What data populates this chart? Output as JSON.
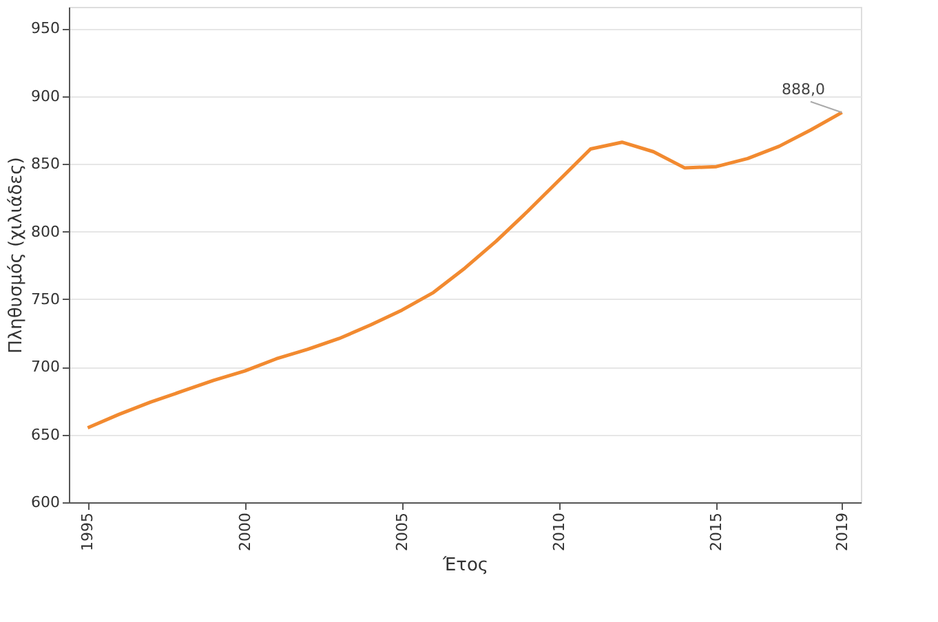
{
  "chart_data": {
    "type": "line",
    "xlabel": "Έτος",
    "ylabel": "Πληθυσμός (χιλιάδες)",
    "x": [
      1995,
      1996,
      1997,
      1998,
      1999,
      2000,
      2001,
      2002,
      2003,
      2004,
      2005,
      2006,
      2007,
      2008,
      2009,
      2010,
      2011,
      2012,
      2013,
      2014,
      2015,
      2016,
      2017,
      2018,
      2019
    ],
    "series": [
      {
        "color": "#f28a30",
        "values": [
          655,
          665,
          674,
          682,
          690,
          697,
          706,
          713,
          721,
          731,
          742,
          755,
          773,
          793,
          815,
          838,
          861,
          866,
          859,
          847,
          848,
          854,
          863,
          875,
          888
        ]
      }
    ],
    "xlim": [
      1994.4,
      2019.6
    ],
    "xticks": [
      1995,
      2000,
      2005,
      2010,
      2015,
      2019
    ],
    "ylim": [
      600,
      966
    ],
    "yticks": [
      600,
      650,
      700,
      750,
      800,
      850,
      900,
      950
    ],
    "grid": "y",
    "marker": "none",
    "line_style": "solid",
    "annotations": [
      {
        "text": "888,0",
        "x": 2019,
        "y": 888
      }
    ]
  }
}
